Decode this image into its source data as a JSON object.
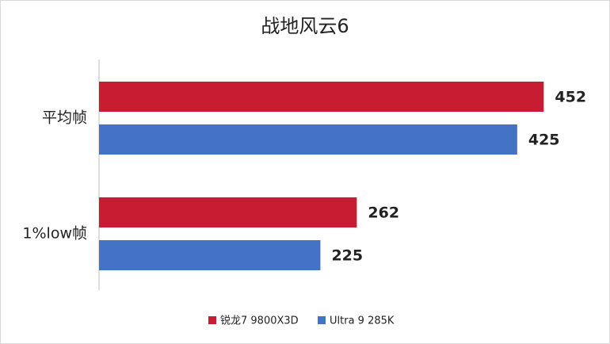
{
  "chart_data": {
    "type": "hbar",
    "title": "战地风云6",
    "categories": [
      "平均帧",
      "1%low帧"
    ],
    "series": [
      {
        "name": "锐龙7 9800X3D",
        "color": "#c81c32",
        "values": [
          452,
          262
        ]
      },
      {
        "name": "Ultra 9 285K",
        "color": "#4472c4",
        "values": [
          425,
          225
        ]
      }
    ],
    "xlim": [
      0,
      500
    ],
    "legend": "bottom"
  }
}
